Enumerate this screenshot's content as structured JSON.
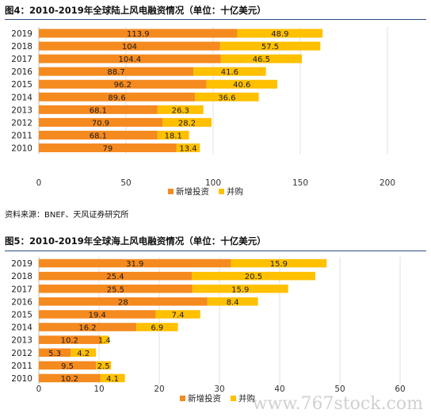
{
  "figures": [
    {
      "title": "图4：2010-2019年全球陆上风电融资情况（单位：十亿美元）",
      "source": "资料来源：BNEF、天风证券研究所"
    },
    {
      "title": "图5：2010-2019年全球海上风电融资情况（单位：十亿美元）",
      "source": "资料来源：BNEF、天风证券研究所"
    }
  ],
  "colors": {
    "new_investment": "#F58A1F",
    "merger": "#FFC000",
    "rule": "#2E4A82"
  },
  "watermark": "www.767stock.com",
  "chart_data": [
    {
      "type": "bar",
      "orientation": "horizontal",
      "stacked": true,
      "title": "图4：2010-2019年全球陆上风电融资情况（单位：十亿美元）",
      "categories": [
        "2019",
        "2018",
        "2017",
        "2016",
        "2015",
        "2014",
        "2013",
        "2012",
        "2011",
        "2010"
      ],
      "series": [
        {
          "name": "新增投资",
          "values": [
            113.9,
            104,
            104.4,
            88.7,
            96.2,
            89.6,
            68.1,
            70.9,
            68.1,
            79
          ]
        },
        {
          "name": "并购",
          "values": [
            48.9,
            57.5,
            46.5,
            41.6,
            40.6,
            36.6,
            26.3,
            28.2,
            18.1,
            13.4
          ]
        }
      ],
      "xlim": [
        0,
        200
      ],
      "xticks": [
        0,
        50,
        100,
        150,
        200
      ],
      "legend": "bottom-right",
      "grid": "vertical"
    },
    {
      "type": "bar",
      "orientation": "horizontal",
      "stacked": true,
      "title": "图5：2010-2019年全球海上风电融资情况（单位：十亿美元）",
      "categories": [
        "2019",
        "2018",
        "2017",
        "2016",
        "2015",
        "2014",
        "2013",
        "2012",
        "2011",
        "2010"
      ],
      "series": [
        {
          "name": "新增投资",
          "values": [
            31.9,
            25.4,
            25.5,
            28,
            19.4,
            16.2,
            10.2,
            5.3,
            9.5,
            10.2
          ]
        },
        {
          "name": "并购",
          "values": [
            15.9,
            20.5,
            15.9,
            8.4,
            7.4,
            6.9,
            1.4,
            4.2,
            2.5,
            4.1
          ]
        }
      ],
      "xlim": [
        0,
        60
      ],
      "xticks": [
        0,
        10,
        20,
        30,
        40,
        50,
        60
      ],
      "legend": "bottom-right",
      "grid": "vertical"
    }
  ]
}
